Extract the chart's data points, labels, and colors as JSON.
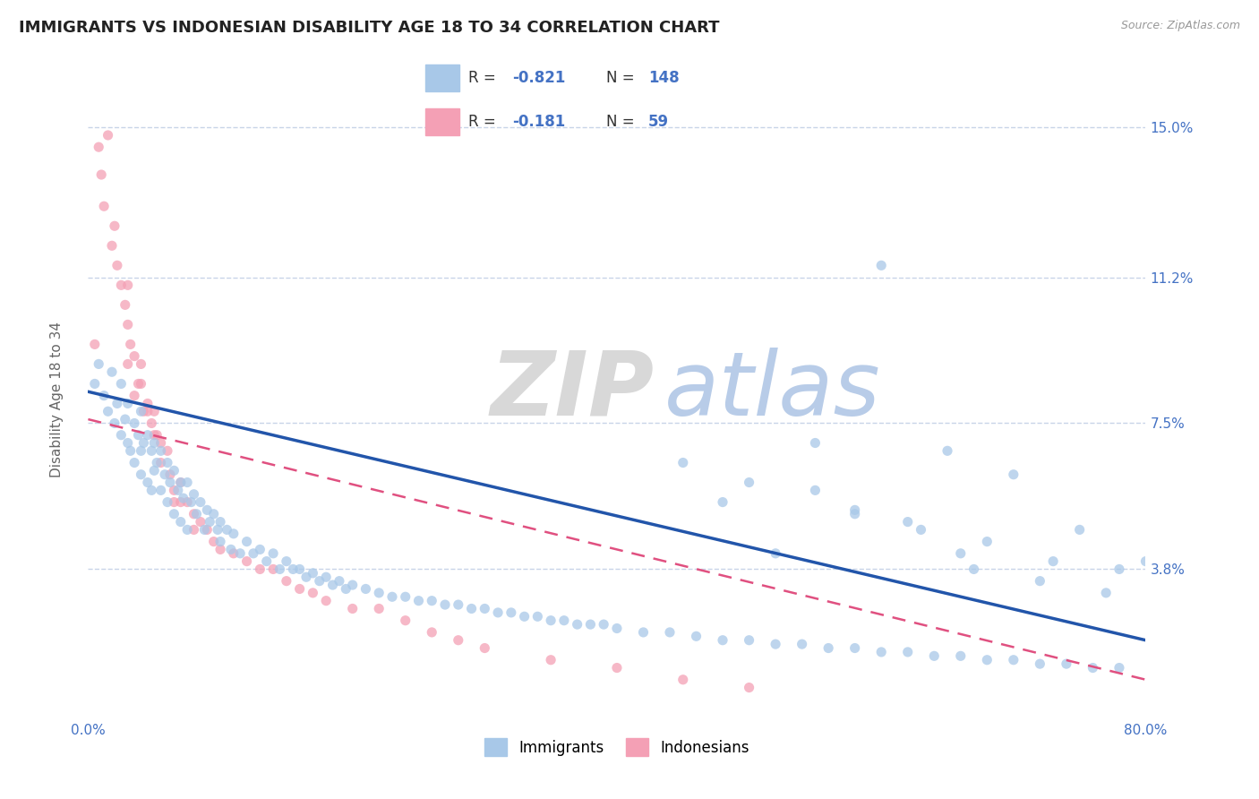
{
  "title": "IMMIGRANTS VS INDONESIAN DISABILITY AGE 18 TO 34 CORRELATION CHART",
  "source": "Source: ZipAtlas.com",
  "ylabel": "Disability Age 18 to 34",
  "xlim": [
    0.0,
    0.8
  ],
  "ylim": [
    0.0,
    0.16
  ],
  "ytick_positions": [
    0.038,
    0.075,
    0.112,
    0.15
  ],
  "ytick_labels": [
    "3.8%",
    "7.5%",
    "11.2%",
    "15.0%"
  ],
  "blue_color": "#a8c8e8",
  "pink_color": "#f4a0b5",
  "blue_line_color": "#2255aa",
  "pink_line_color": "#e05080",
  "label_color": "#4472c4",
  "grid_color": "#c8d4e8",
  "background_color": "#ffffff",
  "title_fontsize": 13,
  "axis_label_fontsize": 11,
  "tick_fontsize": 11,
  "immigrants_x": [
    0.005,
    0.008,
    0.012,
    0.015,
    0.018,
    0.02,
    0.022,
    0.025,
    0.025,
    0.028,
    0.03,
    0.03,
    0.032,
    0.035,
    0.035,
    0.038,
    0.04,
    0.04,
    0.04,
    0.042,
    0.045,
    0.045,
    0.048,
    0.048,
    0.05,
    0.05,
    0.052,
    0.055,
    0.055,
    0.058,
    0.06,
    0.06,
    0.062,
    0.065,
    0.065,
    0.068,
    0.07,
    0.07,
    0.072,
    0.075,
    0.075,
    0.078,
    0.08,
    0.082,
    0.085,
    0.088,
    0.09,
    0.092,
    0.095,
    0.098,
    0.1,
    0.1,
    0.105,
    0.108,
    0.11,
    0.115,
    0.12,
    0.125,
    0.13,
    0.135,
    0.14,
    0.145,
    0.15,
    0.155,
    0.16,
    0.165,
    0.17,
    0.175,
    0.18,
    0.185,
    0.19,
    0.195,
    0.2,
    0.21,
    0.22,
    0.23,
    0.24,
    0.25,
    0.26,
    0.27,
    0.28,
    0.29,
    0.3,
    0.31,
    0.32,
    0.33,
    0.34,
    0.35,
    0.36,
    0.37,
    0.38,
    0.39,
    0.4,
    0.42,
    0.44,
    0.46,
    0.48,
    0.5,
    0.52,
    0.54,
    0.56,
    0.58,
    0.6,
    0.62,
    0.64,
    0.66,
    0.68,
    0.7,
    0.72,
    0.74,
    0.76,
    0.78,
    0.8,
    0.6,
    0.65,
    0.7,
    0.75,
    0.5,
    0.55,
    0.45,
    0.48,
    0.52,
    0.58,
    0.63,
    0.67,
    0.72,
    0.77,
    0.68,
    0.73,
    0.78,
    0.62,
    0.66,
    0.55,
    0.58
  ],
  "immigrants_y": [
    0.085,
    0.09,
    0.082,
    0.078,
    0.088,
    0.075,
    0.08,
    0.085,
    0.072,
    0.076,
    0.08,
    0.07,
    0.068,
    0.075,
    0.065,
    0.072,
    0.078,
    0.068,
    0.062,
    0.07,
    0.072,
    0.06,
    0.068,
    0.058,
    0.07,
    0.063,
    0.065,
    0.068,
    0.058,
    0.062,
    0.065,
    0.055,
    0.06,
    0.063,
    0.052,
    0.058,
    0.06,
    0.05,
    0.056,
    0.06,
    0.048,
    0.055,
    0.057,
    0.052,
    0.055,
    0.048,
    0.053,
    0.05,
    0.052,
    0.048,
    0.05,
    0.045,
    0.048,
    0.043,
    0.047,
    0.042,
    0.045,
    0.042,
    0.043,
    0.04,
    0.042,
    0.038,
    0.04,
    0.038,
    0.038,
    0.036,
    0.037,
    0.035,
    0.036,
    0.034,
    0.035,
    0.033,
    0.034,
    0.033,
    0.032,
    0.031,
    0.031,
    0.03,
    0.03,
    0.029,
    0.029,
    0.028,
    0.028,
    0.027,
    0.027,
    0.026,
    0.026,
    0.025,
    0.025,
    0.024,
    0.024,
    0.024,
    0.023,
    0.022,
    0.022,
    0.021,
    0.02,
    0.02,
    0.019,
    0.019,
    0.018,
    0.018,
    0.017,
    0.017,
    0.016,
    0.016,
    0.015,
    0.015,
    0.014,
    0.014,
    0.013,
    0.013,
    0.04,
    0.115,
    0.068,
    0.062,
    0.048,
    0.06,
    0.07,
    0.065,
    0.055,
    0.042,
    0.052,
    0.048,
    0.038,
    0.035,
    0.032,
    0.045,
    0.04,
    0.038,
    0.05,
    0.042,
    0.058,
    0.053
  ],
  "indonesians_x": [
    0.005,
    0.008,
    0.01,
    0.012,
    0.015,
    0.018,
    0.02,
    0.022,
    0.025,
    0.028,
    0.03,
    0.03,
    0.032,
    0.035,
    0.038,
    0.04,
    0.042,
    0.045,
    0.048,
    0.05,
    0.052,
    0.055,
    0.06,
    0.062,
    0.065,
    0.07,
    0.075,
    0.08,
    0.085,
    0.09,
    0.095,
    0.1,
    0.11,
    0.12,
    0.13,
    0.14,
    0.15,
    0.16,
    0.17,
    0.18,
    0.2,
    0.22,
    0.24,
    0.26,
    0.28,
    0.3,
    0.35,
    0.4,
    0.45,
    0.5,
    0.03,
    0.035,
    0.04,
    0.045,
    0.05,
    0.055,
    0.065,
    0.07,
    0.08
  ],
  "indonesians_y": [
    0.095,
    0.145,
    0.138,
    0.13,
    0.148,
    0.12,
    0.125,
    0.115,
    0.11,
    0.105,
    0.1,
    0.09,
    0.095,
    0.082,
    0.085,
    0.09,
    0.078,
    0.08,
    0.075,
    0.078,
    0.072,
    0.07,
    0.068,
    0.062,
    0.055,
    0.06,
    0.055,
    0.052,
    0.05,
    0.048,
    0.045,
    0.043,
    0.042,
    0.04,
    0.038,
    0.038,
    0.035,
    0.033,
    0.032,
    0.03,
    0.028,
    0.028,
    0.025,
    0.022,
    0.02,
    0.018,
    0.015,
    0.013,
    0.01,
    0.008,
    0.11,
    0.092,
    0.085,
    0.078,
    0.072,
    0.065,
    0.058,
    0.055,
    0.048
  ],
  "blue_trend_x0": 0.0,
  "blue_trend_y0": 0.083,
  "blue_trend_x1": 0.8,
  "blue_trend_y1": 0.02,
  "pink_trend_x0": 0.0,
  "pink_trend_y0": 0.076,
  "pink_trend_x1": 0.8,
  "pink_trend_y1": 0.01
}
